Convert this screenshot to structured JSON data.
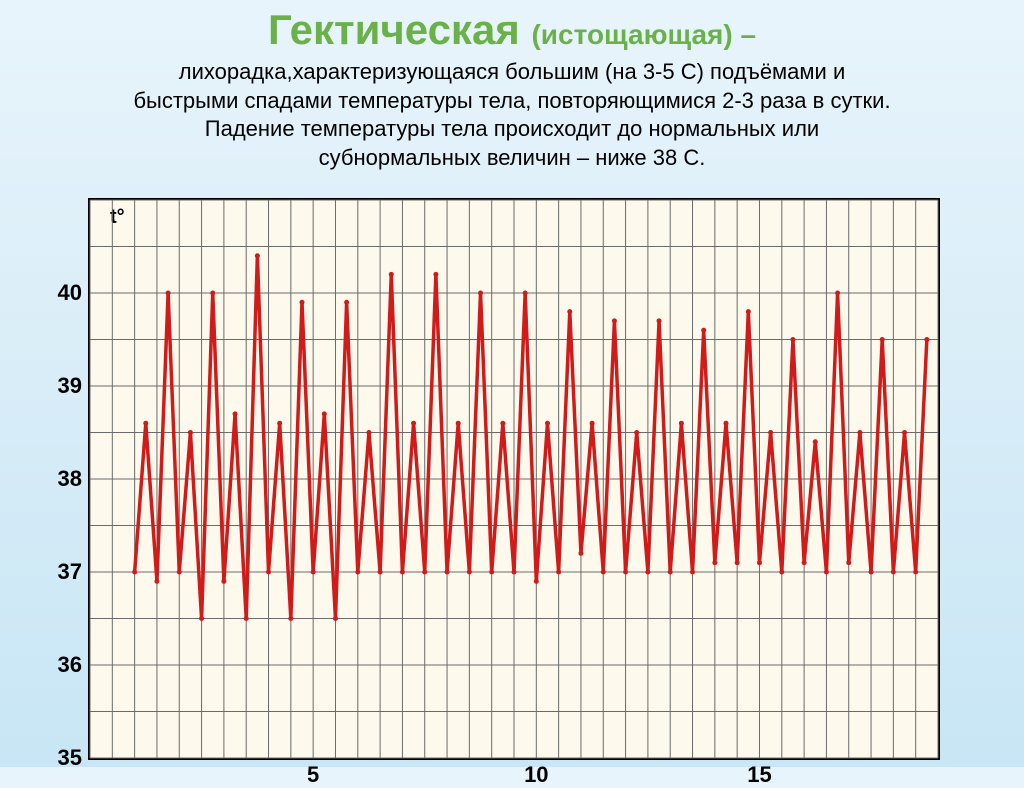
{
  "title_main": "Гектическая ",
  "title_sub": "(истощающая)",
  "dash": " –",
  "desc_line1": "лихорадка,характеризующаяся большим (на 3-5 С) подъёмами и",
  "desc_line2": "быстрыми спадами температуры тела, повторяющимися 2-3 раза в сутки.",
  "desc_line3": "Падение температуры тела происходит до нормальных или",
  "desc_line4": "субнормальных величин – ниже 38 С.",
  "chart": {
    "type": "line",
    "axis_label": "t°",
    "ylim": [
      35,
      41
    ],
    "xlim": [
      0,
      19
    ],
    "yticks": [
      35,
      36,
      37,
      38,
      39,
      40
    ],
    "xticks": [
      5,
      10,
      15
    ],
    "y_minor_step": 0.5,
    "x_minor_step": 0.5,
    "background_color": "#fdf9ec",
    "grid_color": "#6b6b6b",
    "grid_width": 1,
    "line_color": "#d11b1b",
    "line_width": 3.5,
    "marker_color": "#d11b1b",
    "marker_radius": 2.5,
    "series": [
      [
        1.0,
        37.0
      ],
      [
        1.25,
        38.6
      ],
      [
        1.5,
        36.9
      ],
      [
        1.75,
        40.0
      ],
      [
        2.0,
        37.0
      ],
      [
        2.25,
        38.5
      ],
      [
        2.5,
        36.5
      ],
      [
        2.75,
        40.0
      ],
      [
        3.0,
        36.9
      ],
      [
        3.25,
        38.7
      ],
      [
        3.5,
        36.5
      ],
      [
        3.75,
        40.4
      ],
      [
        4.0,
        37.0
      ],
      [
        4.25,
        38.6
      ],
      [
        4.5,
        36.5
      ],
      [
        4.75,
        39.9
      ],
      [
        5.0,
        37.0
      ],
      [
        5.25,
        38.7
      ],
      [
        5.5,
        36.5
      ],
      [
        5.75,
        39.9
      ],
      [
        6.0,
        37.0
      ],
      [
        6.25,
        38.5
      ],
      [
        6.5,
        37.0
      ],
      [
        6.75,
        40.2
      ],
      [
        7.0,
        37.0
      ],
      [
        7.25,
        38.6
      ],
      [
        7.5,
        37.0
      ],
      [
        7.75,
        40.2
      ],
      [
        8.0,
        37.0
      ],
      [
        8.25,
        38.6
      ],
      [
        8.5,
        37.0
      ],
      [
        8.75,
        40.0
      ],
      [
        9.0,
        37.0
      ],
      [
        9.25,
        38.6
      ],
      [
        9.5,
        37.0
      ],
      [
        9.75,
        40.0
      ],
      [
        10.0,
        36.9
      ],
      [
        10.25,
        38.6
      ],
      [
        10.5,
        37.0
      ],
      [
        10.75,
        39.8
      ],
      [
        11.0,
        37.2
      ],
      [
        11.25,
        38.6
      ],
      [
        11.5,
        37.0
      ],
      [
        11.75,
        39.7
      ],
      [
        12.0,
        37.0
      ],
      [
        12.25,
        38.5
      ],
      [
        12.5,
        37.0
      ],
      [
        12.75,
        39.7
      ],
      [
        13.0,
        37.0
      ],
      [
        13.25,
        38.6
      ],
      [
        13.5,
        37.0
      ],
      [
        13.75,
        39.6
      ],
      [
        14.0,
        37.1
      ],
      [
        14.25,
        38.6
      ],
      [
        14.5,
        37.1
      ],
      [
        14.75,
        39.8
      ],
      [
        15.0,
        37.1
      ],
      [
        15.25,
        38.5
      ],
      [
        15.5,
        37.0
      ],
      [
        15.75,
        39.5
      ],
      [
        16.0,
        37.1
      ],
      [
        16.25,
        38.4
      ],
      [
        16.5,
        37.0
      ],
      [
        16.75,
        40.0
      ],
      [
        17.0,
        37.1
      ],
      [
        17.25,
        38.5
      ],
      [
        17.5,
        37.0
      ],
      [
        17.75,
        39.5
      ],
      [
        18.0,
        37.0
      ],
      [
        18.25,
        38.5
      ],
      [
        18.5,
        37.0
      ],
      [
        18.75,
        39.5
      ]
    ]
  }
}
